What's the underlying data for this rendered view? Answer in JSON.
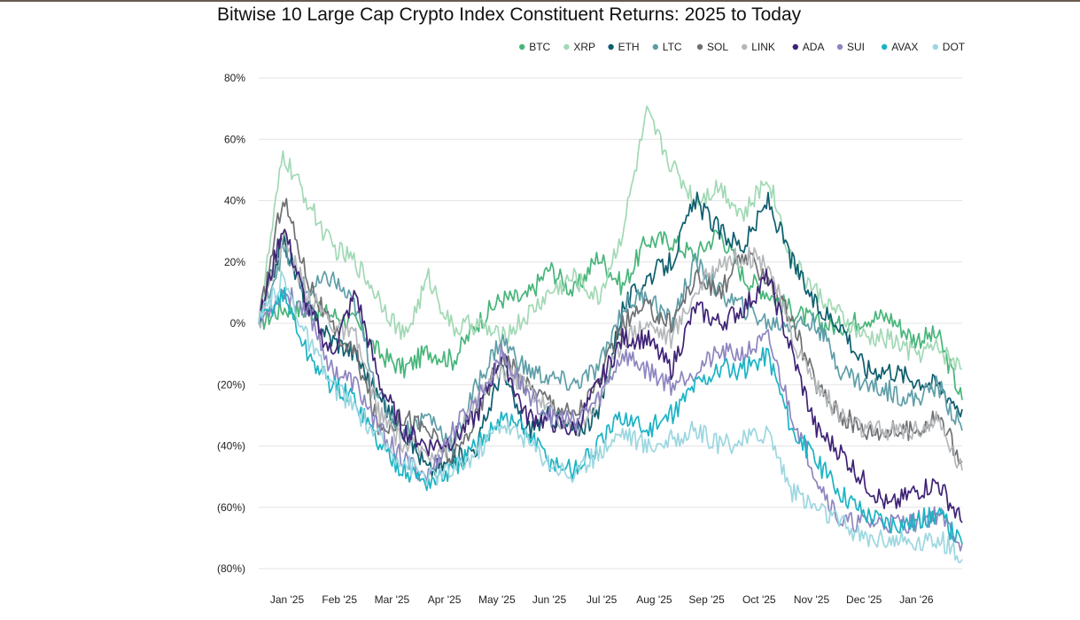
{
  "chart_data": {
    "type": "line",
    "title": "Bitwise 10 Large Cap Crypto Index Constituent Returns: 2025 to Today",
    "xlabel": "",
    "ylabel": "",
    "y_ticks": [
      "80%",
      "60%",
      "40%",
      "20%",
      "0%",
      "(20%)",
      "(40%)",
      "(60%)",
      "(80%)"
    ],
    "y_tick_values": [
      80,
      60,
      40,
      20,
      0,
      -20,
      -40,
      -60,
      -80
    ],
    "ylim": [
      -80,
      80
    ],
    "x_ticks": [
      "Jan '25",
      "Feb '25",
      "Mar '25",
      "Apr '25",
      "May '25",
      "Jun '25",
      "Jul '25",
      "Aug '25",
      "Sep '25",
      "Oct '25",
      "Nov '25",
      "Dec '25",
      "Jan '26"
    ],
    "xlim": [
      "2024-12-31",
      "2026-01-31"
    ],
    "grid": "horizontal",
    "legend": "top-right",
    "series": [
      {
        "name": "BTC",
        "color": "#48b57a",
        "values": [
          0,
          5,
          4,
          3,
          0,
          -10,
          -15,
          -9,
          -12,
          0,
          8,
          8,
          18,
          10,
          22,
          12,
          27,
          27,
          22,
          30,
          15,
          10,
          4,
          0,
          -1,
          2,
          2,
          -5,
          -4,
          -25
        ]
      },
      {
        "name": "XRP",
        "color": "#a2d9b5",
        "values": [
          0,
          55,
          40,
          25,
          20,
          8,
          -5,
          15,
          -2,
          0,
          -5,
          2,
          10,
          15,
          8,
          30,
          68,
          52,
          40,
          45,
          35,
          48,
          20,
          10,
          2,
          -5,
          -5,
          -10,
          -8,
          -15
        ]
      },
      {
        "name": "ETH",
        "color": "#0e5e6f",
        "values": [
          0,
          28,
          5,
          -5,
          -10,
          -25,
          -35,
          -48,
          -45,
          -40,
          -15,
          -35,
          -30,
          -35,
          -30,
          5,
          15,
          20,
          40,
          30,
          25,
          40,
          20,
          5,
          0,
          -15,
          -15,
          -18,
          -20,
          -28
        ]
      },
      {
        "name": "LTC",
        "color": "#5f9ea8",
        "values": [
          0,
          24,
          10,
          15,
          5,
          -25,
          -35,
          -30,
          -40,
          -20,
          -5,
          -15,
          -18,
          -20,
          -15,
          5,
          10,
          0,
          20,
          10,
          5,
          0,
          0,
          0,
          -15,
          -20,
          -22,
          -25,
          -20,
          -35
        ]
      },
      {
        "name": "SOL",
        "color": "#6e7072",
        "values": [
          0,
          42,
          15,
          -2,
          -10,
          -35,
          -30,
          -35,
          -45,
          -30,
          -10,
          -20,
          -25,
          -30,
          -20,
          0,
          5,
          0,
          15,
          10,
          22,
          15,
          0,
          -20,
          -30,
          -35,
          -35,
          -35,
          -30,
          -45
        ]
      },
      {
        "name": "LINK",
        "color": "#b5b8ba",
        "values": [
          0,
          28,
          10,
          0,
          -5,
          -30,
          -40,
          -42,
          -40,
          -25,
          -15,
          -20,
          -28,
          -35,
          -25,
          -5,
          0,
          -5,
          10,
          20,
          22,
          20,
          -5,
          -20,
          -30,
          -35,
          -35,
          -35,
          -32,
          -48
        ]
      },
      {
        "name": "ADA",
        "color": "#3f2376",
        "values": [
          0,
          32,
          5,
          -10,
          10,
          -20,
          -35,
          -40,
          -38,
          -30,
          -10,
          -30,
          -32,
          -35,
          -20,
          -5,
          -5,
          -15,
          5,
          0,
          5,
          15,
          -10,
          -35,
          -42,
          -52,
          -60,
          -55,
          -52,
          -65
        ]
      },
      {
        "name": "SUI",
        "color": "#8d86c0",
        "values": [
          0,
          10,
          5,
          -15,
          -20,
          -35,
          -45,
          -50,
          -35,
          -25,
          -10,
          -22,
          -30,
          -32,
          -25,
          -10,
          -15,
          -20,
          -15,
          -10,
          -10,
          -5,
          -30,
          -50,
          -65,
          -65,
          -65,
          -65,
          -62,
          -72
        ]
      },
      {
        "name": "AVAX",
        "color": "#1bb3c4",
        "values": [
          0,
          10,
          -10,
          -20,
          -25,
          -40,
          -48,
          -52,
          -48,
          -40,
          -30,
          -35,
          -45,
          -48,
          -40,
          -30,
          -35,
          -30,
          -20,
          -15,
          -15,
          -10,
          -35,
          -45,
          -55,
          -62,
          -65,
          -65,
          -62,
          -72
        ]
      },
      {
        "name": "DOT",
        "color": "#9cd7e0",
        "values": [
          0,
          15,
          -5,
          -20,
          -28,
          -38,
          -45,
          -50,
          -48,
          -42,
          -32,
          -38,
          -45,
          -50,
          -42,
          -35,
          -40,
          -38,
          -35,
          -40,
          -38,
          -35,
          -55,
          -60,
          -65,
          -70,
          -70,
          -72,
          -70,
          -77
        ]
      }
    ]
  }
}
